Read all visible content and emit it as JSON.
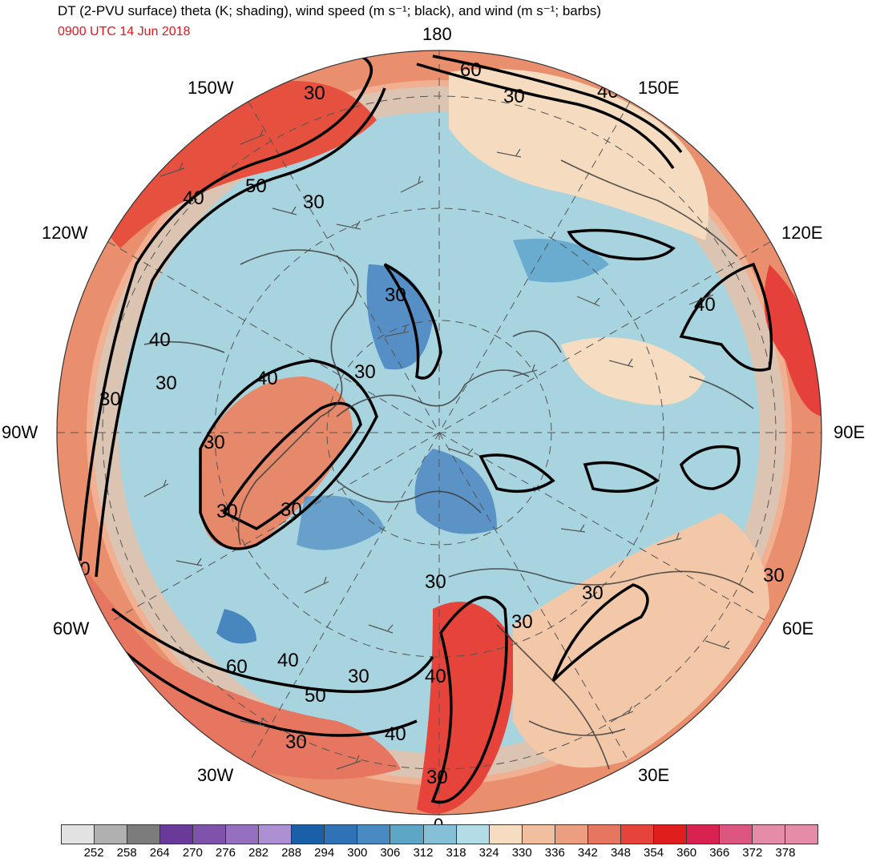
{
  "header": {
    "title": "DT (2-PVU surface) theta (K; shading), wind speed (m s⁻¹; black), and wind (m s⁻¹; barbs)",
    "valid_time": "0900 UTC 14 Jun 2018",
    "valid_time_color": "#e8141c"
  },
  "map": {
    "projection": "north-polar-stereographic",
    "longitude_labels": {
      "lon_180": "180",
      "lon_150e": "150E",
      "lon_120e": "120E",
      "lon_90e": "90E",
      "lon_60e": "60E",
      "lon_30e": "30E",
      "lon_0": "0",
      "lon_30w": "30W",
      "lon_60w": "60W",
      "lon_90w": "90W",
      "lon_120w": "120W",
      "lon_150w": "150W"
    },
    "wind_speed_contour_labels": {
      "jet_pacific_60": "60",
      "jet_pacific_30": "30",
      "jet_pacific_40": "40",
      "jet_alaska_30": "30",
      "jet_alaska_40": "40",
      "jet_alaska_50": "50",
      "jet_alaska_30b": "30",
      "jet_canada_40": "40",
      "jet_canada_30": "30",
      "jet_canada_30b": "30",
      "jet_hudson_40": "40",
      "jet_hudson_30": "30",
      "jet_hudson_30b": "30",
      "jet_hudson_30c": "30",
      "jet_hudson_30d": "30",
      "jet_arctic_30": "30",
      "jet_asia_40": "40",
      "jet_labrador_40": "40",
      "jet_atlantic_60": "60",
      "jet_atlantic_40": "40",
      "jet_atlantic_30": "30",
      "jet_atlantic_50": "50",
      "jet_atlantic_40b": "40",
      "jet_atlantic_30b": "30",
      "jet_europe_30": "30",
      "jet_europe_30b": "30",
      "jet_europe_40": "40",
      "jet_europe_30c": "30",
      "jet_russia_30": "30",
      "jet_russia_30b": "30"
    },
    "colors": {
      "water_cold": "#5aa8c8",
      "cold_core": "#3a78bc",
      "neutral": "#f5dcc0",
      "warm": "#ea8f6e",
      "hot": "#e6403a"
    }
  },
  "colorbar": {
    "unit": "K",
    "labels": [
      "252",
      "258",
      "264",
      "270",
      "276",
      "282",
      "288",
      "294",
      "300",
      "306",
      "312",
      "318",
      "324",
      "330",
      "336",
      "342",
      "348",
      "354",
      "360",
      "366",
      "372",
      "378"
    ],
    "colors": [
      "#e2e2e2",
      "#b0b0b0",
      "#7c7c7c",
      "#6a3a9a",
      "#7f52ab",
      "#9670bf",
      "#ad90d3",
      "#1a60a8",
      "#2f72b6",
      "#4a8ac2",
      "#5da6c6",
      "#86c0d6",
      "#b3dde6",
      "#f6dcc0",
      "#f2bea0",
      "#ec9f80",
      "#e77660",
      "#e6443a",
      "#e01e1e",
      "#d82250",
      "#dc5680",
      "#e48ca8"
    ]
  }
}
